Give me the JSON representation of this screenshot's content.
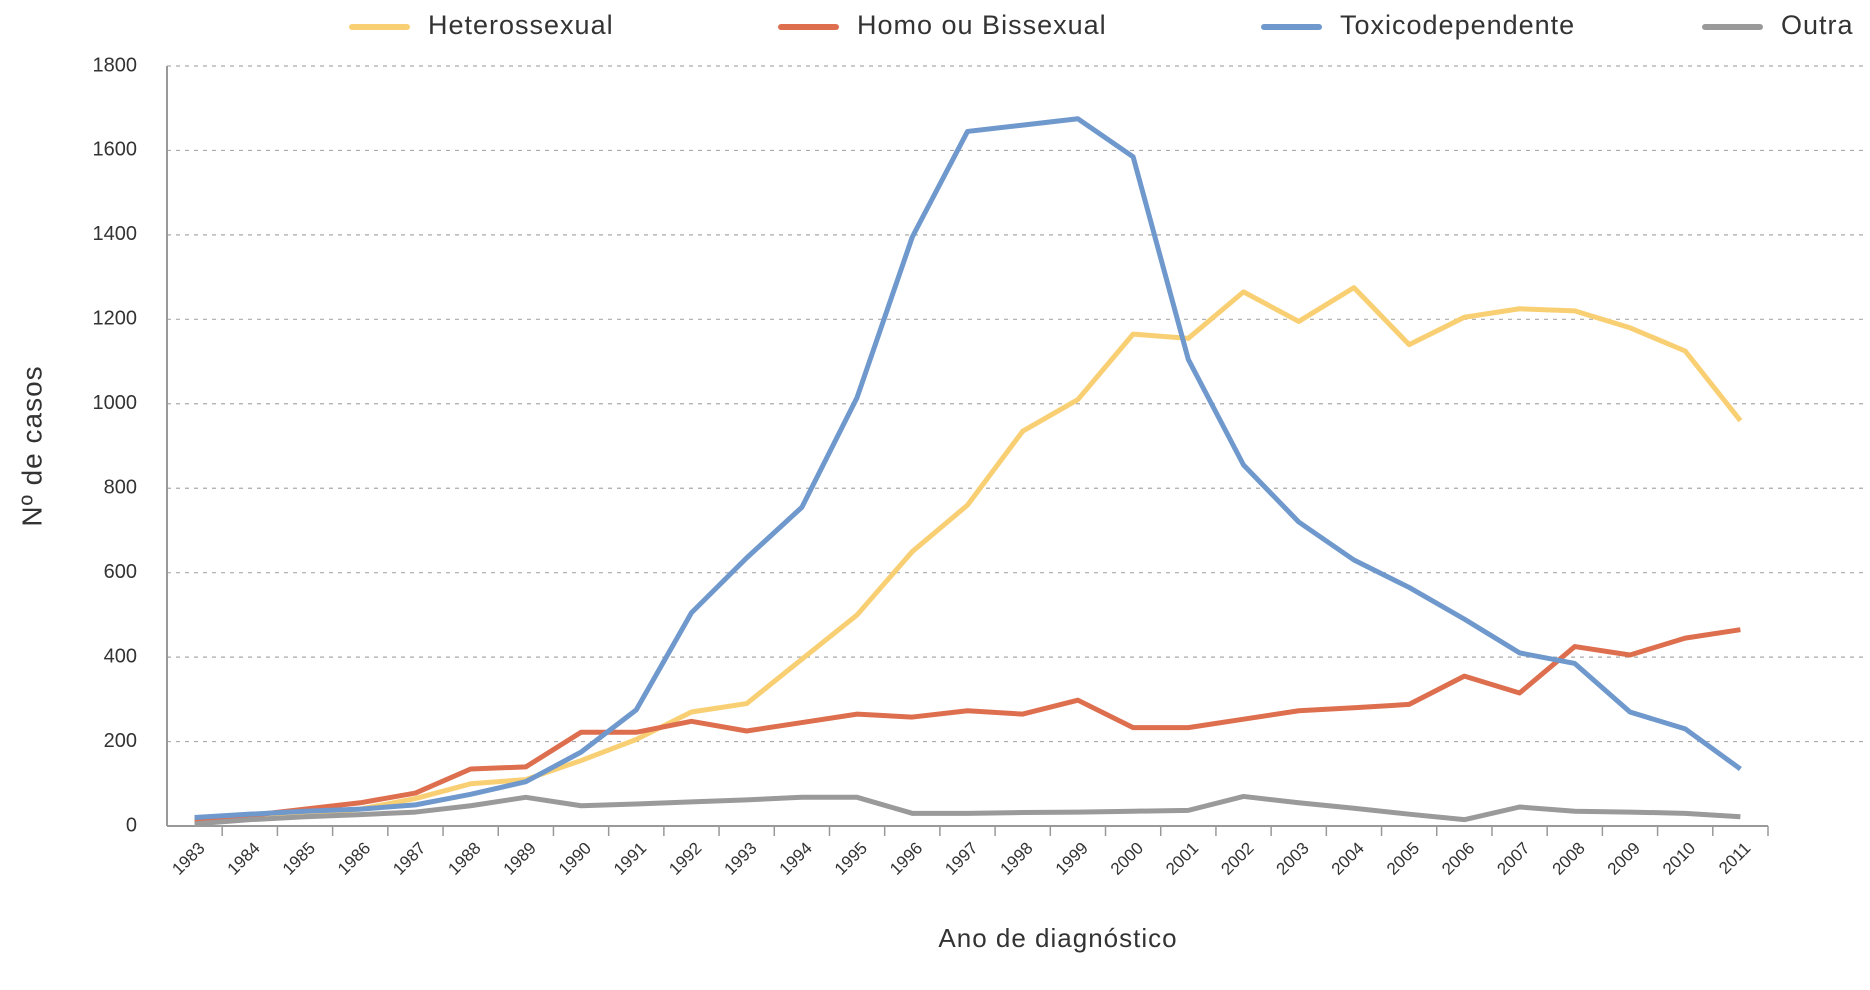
{
  "chart_data": {
    "type": "line",
    "x_label": "Ano de diagnóstico",
    "y_label": "Nº de casos",
    "categories": [
      "1983",
      "1984",
      "1985",
      "1986",
      "1987",
      "1988",
      "1989",
      "1990",
      "1991",
      "1992",
      "1993",
      "1994",
      "1995",
      "1996",
      "1997",
      "1998",
      "1999",
      "2000",
      "2001",
      "2002",
      "2003",
      "2004",
      "2005",
      "2006",
      "2007",
      "2008",
      "2009",
      "2010",
      "2011"
    ],
    "series": [
      {
        "name": "Heterossexual",
        "color": "#f9cf73",
        "values": [
          10,
          20,
          28,
          40,
          65,
          100,
          110,
          155,
          205,
          270,
          290,
          395,
          500,
          650,
          760,
          935,
          1010,
          1165,
          1155,
          1265,
          1195,
          1275,
          1140,
          1205,
          1225,
          1220,
          1180,
          1125,
          960
        ]
      },
      {
        "name": "Homo ou Bissexual",
        "color": "#dd6f4f",
        "values": [
          15,
          25,
          40,
          55,
          78,
          135,
          140,
          222,
          222,
          248,
          225,
          245,
          265,
          258,
          273,
          265,
          298,
          233,
          233,
          253,
          273,
          280,
          288,
          355,
          315,
          425,
          405,
          445,
          465
        ]
      },
      {
        "name": "Toxicodependente",
        "color": "#6f98cc",
        "values": [
          20,
          28,
          35,
          40,
          50,
          75,
          105,
          175,
          275,
          505,
          635,
          755,
          1015,
          1395,
          1645,
          1660,
          1675,
          1585,
          1105,
          855,
          720,
          630,
          565,
          490,
          410,
          385,
          270,
          230,
          135
        ]
      },
      {
        "name": "Outra",
        "color": "#9a9a9a",
        "values": [
          5,
          15,
          22,
          27,
          33,
          48,
          68,
          48,
          52,
          57,
          62,
          68,
          68,
          30,
          30,
          32,
          33,
          35,
          37,
          70,
          55,
          42,
          28,
          15,
          45,
          35,
          33,
          30,
          22
        ]
      }
    ],
    "ylim": [
      0,
      1800
    ],
    "yticks": [
      0,
      200,
      400,
      600,
      800,
      1000,
      1200,
      1400,
      1600,
      1800
    ],
    "grid": true,
    "legend": "top"
  }
}
